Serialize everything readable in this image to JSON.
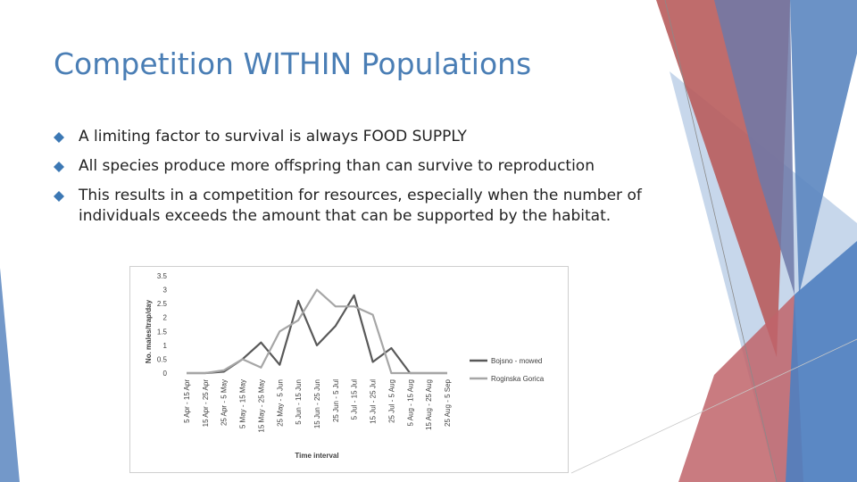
{
  "slide": {
    "title": "Competition WITHIN Populations",
    "bullets": [
      "A limiting factor to survival is always FOOD SUPPLY",
      "All species produce more offspring than can survive to reproduction",
      "This results in a competition for resources, especially when the number of individuals exceeds the amount that can be supported by the habitat."
    ],
    "colors": {
      "title": "#4a7eb5",
      "bullet_marker": "#3c78b4",
      "deco_red": "#b85c5c",
      "deco_blue": "#5b86c0",
      "deco_light_blue": "#b9cde6"
    }
  },
  "chart_data": {
    "type": "line",
    "title": "",
    "xlabel": "Time interval",
    "ylabel": "No. males/trap/day",
    "ylim": [
      0,
      3.5
    ],
    "yticks": [
      "0",
      "0.5",
      "1",
      "1.5",
      "2",
      "2.5",
      "3",
      "3.5"
    ],
    "categories": [
      "5 Apr - 15 Apr",
      "15 Apr - 25 Apr",
      "25 Apr - 5 May",
      "5 May - 15 May",
      "15 May - 25 May",
      "25 May - 5 Jun",
      "5 Jun - 15 Jun",
      "15 Jun - 25 Jun",
      "25 Jun - 5 Jul",
      "5 Jul - 15 Jul",
      "15 Jul - 25 Jul",
      "25 Jul - 5 Aug",
      "5 Aug - 15 Aug",
      "15 Aug - 25 Aug",
      "25 Aug - 5 Sep"
    ],
    "series": [
      {
        "name": "Bojsno - mowed",
        "color": "#595959",
        "values": [
          0,
          0,
          0.05,
          0.5,
          1.1,
          0.3,
          2.6,
          1.0,
          1.7,
          2.8,
          0.4,
          0.9,
          0,
          0,
          0
        ]
      },
      {
        "name": "Roginska Gorica",
        "color": "#a6a6a6",
        "values": [
          0,
          0,
          0.1,
          0.5,
          0.2,
          1.5,
          1.9,
          3.0,
          2.4,
          2.4,
          2.1,
          0,
          0,
          0,
          0
        ]
      }
    ],
    "grid": false,
    "legend": "right"
  }
}
